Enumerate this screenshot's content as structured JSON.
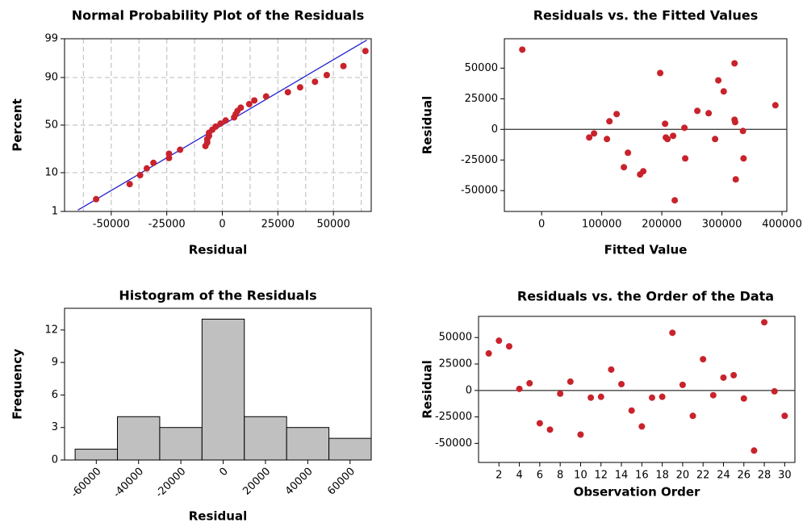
{
  "chart_data": [
    {
      "type": "scatter",
      "title": "Normal Probability Plot of the Residuals",
      "xlabel": "Residual",
      "ylabel": "Percent",
      "yscale": "probability",
      "grid": true,
      "color": "#c8232c",
      "line_color": "#2020d0",
      "xlim": [
        -71000,
        67000
      ],
      "xticks": [
        -50000,
        -25000,
        0,
        25000,
        50000
      ],
      "ylim": [
        1,
        99
      ],
      "yticks": [
        1,
        10,
        50,
        90,
        99
      ],
      "x": [
        -56800,
        -41700,
        -37000,
        -34000,
        -31000,
        -24000,
        -24000,
        -19000,
        -7600,
        -6800,
        -6800,
        -6000,
        -6000,
        -4500,
        -3000,
        -800,
        1500,
        5300,
        6000,
        6800,
        8300,
        12100,
        14400,
        19700,
        29500,
        35000,
        41700,
        47000,
        54500,
        64400
      ],
      "values": [
        2.3,
        5.59,
        8.88,
        12.17,
        15.46,
        18.75,
        22.04,
        25.33,
        28.62,
        31.91,
        35.2,
        38.49,
        41.78,
        45.07,
        48.36,
        51.64,
        54.93,
        58.22,
        61.51,
        64.8,
        68.09,
        71.38,
        74.67,
        77.96,
        81.25,
        84.54,
        87.83,
        91.12,
        94.41,
        97.7
      ],
      "fit_line": {
        "x": [
          -65000,
          65000
        ],
        "y": [
          1.1,
          98.9
        ]
      }
    },
    {
      "type": "scatter",
      "title": "Residuals vs. the Fitted Values",
      "xlabel": "Fitted Value",
      "ylabel": "Residual",
      "color": "#c8232c",
      "reference_line": 0,
      "xlim": [
        -62000,
        408000
      ],
      "xticks": [
        0,
        100000,
        200000,
        300000,
        400000
      ],
      "ylim": [
        -67000,
        74000
      ],
      "yticks": [
        -50000,
        -25000,
        0,
        25000,
        50000
      ],
      "x": [
        -32200,
        79200,
        87200,
        108700,
        112800,
        124800,
        136900,
        143600,
        163800,
        169100,
        197300,
        205400,
        206700,
        209400,
        218800,
        221500,
        237600,
        238900,
        259100,
        277900,
        288600,
        294000,
        303000,
        323000,
        321000,
        321000,
        322000,
        335000,
        336000,
        389000
      ],
      "values": [
        65100,
        -6600,
        -3300,
        -7900,
        6600,
        12500,
        -30900,
        -19100,
        -36800,
        -34200,
        46000,
        4600,
        -6600,
        -7900,
        -5300,
        -57900,
        1300,
        -23700,
        15100,
        13200,
        -7900,
        40000,
        31000,
        -40800,
        53900,
        7900,
        5900,
        -1300,
        -23700,
        19700
      ]
    },
    {
      "type": "histogram",
      "title": "Histogram of the Residuals",
      "xlabel": "Residual",
      "ylabel": "Frequency",
      "color": "#c0c0c0",
      "xlim": [
        -75000,
        70000
      ],
      "xticks": [
        -60000,
        -40000,
        -20000,
        0,
        20000,
        40000,
        60000
      ],
      "ylim": [
        0,
        14
      ],
      "yticks": [
        0,
        3,
        6,
        9,
        12
      ],
      "bins": [
        -70000,
        -50000,
        -30000,
        -10000,
        10000,
        30000,
        50000,
        70000
      ],
      "values": [
        1,
        4,
        3,
        13,
        4,
        3,
        2
      ]
    },
    {
      "type": "line",
      "title": "Residuals vs. the Order of the Data",
      "xlabel": "Observation Order",
      "ylabel": "Residual",
      "color": "#c8232c",
      "line_color": "#2020d0",
      "reference_line": 0,
      "xlim": [
        0,
        31
      ],
      "xticks": [
        2,
        4,
        6,
        8,
        10,
        12,
        14,
        16,
        18,
        20,
        22,
        24,
        26,
        28,
        30
      ],
      "ylim": [
        -68000,
        70000
      ],
      "yticks": [
        -50000,
        -25000,
        0,
        25000,
        50000
      ],
      "x": [
        1,
        2,
        3,
        4,
        5,
        6,
        7,
        8,
        9,
        10,
        11,
        12,
        13,
        14,
        15,
        16,
        17,
        18,
        19,
        20,
        21,
        22,
        23,
        24,
        25,
        26,
        27,
        28,
        29,
        30
      ],
      "values": [
        35000,
        47000,
        41700,
        1500,
        6800,
        -31000,
        -37000,
        -3000,
        8300,
        -41700,
        -6800,
        -6000,
        19700,
        6000,
        -19000,
        -34000,
        -6800,
        -6000,
        54500,
        5300,
        -24000,
        29500,
        -4500,
        12100,
        14400,
        -7600,
        -56800,
        64400,
        -800,
        -24000
      ]
    }
  ]
}
